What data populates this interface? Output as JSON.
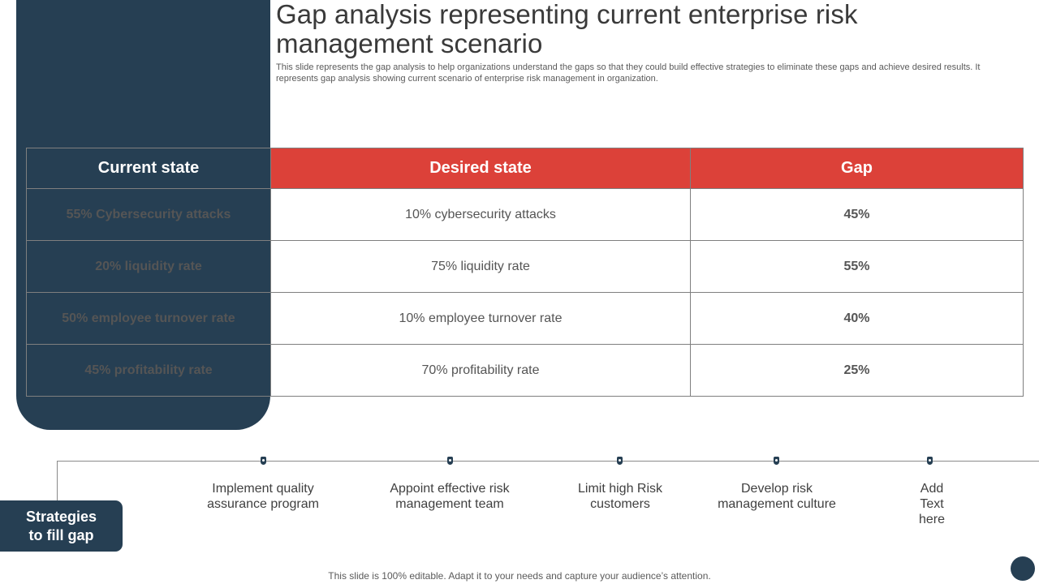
{
  "header": {
    "title": "Gap analysis representing current enterprise risk management scenario",
    "subtitle": "This slide represents the gap analysis to help organizations understand the gaps so that they could build effective strategies to eliminate these gaps and achieve desired results. It represents gap analysis showing current scenario of enterprise risk management in organization."
  },
  "table": {
    "headers": [
      "Current state",
      "Desired state",
      "Gap"
    ],
    "rows": [
      {
        "current": "55% Cybersecurity  attacks",
        "desired": "10% cybersecurity  attacks",
        "gap": "45%"
      },
      {
        "current": "20% liquidity rate",
        "desired": "75% liquidity rate",
        "gap": "55%"
      },
      {
        "current": "50% employee turnover rate",
        "desired": "10% employee turnover  rate",
        "gap": "40%"
      },
      {
        "current": "45% profitability rate",
        "desired": "70% profitability rate",
        "gap": "25%"
      }
    ]
  },
  "strategies": {
    "label": "Strategies to fill gap",
    "items": [
      "Implement  quality assurance program",
      "Appoint effective risk management team",
      "Limit high Risk customers",
      "Develop risk management culture",
      "Add Text here"
    ]
  },
  "footer": {
    "text": "This slide is 100% editable. Adapt it to your needs and capture your audience’s attention."
  },
  "colors": {
    "navy": "#263f53",
    "red": "#dc4139"
  }
}
